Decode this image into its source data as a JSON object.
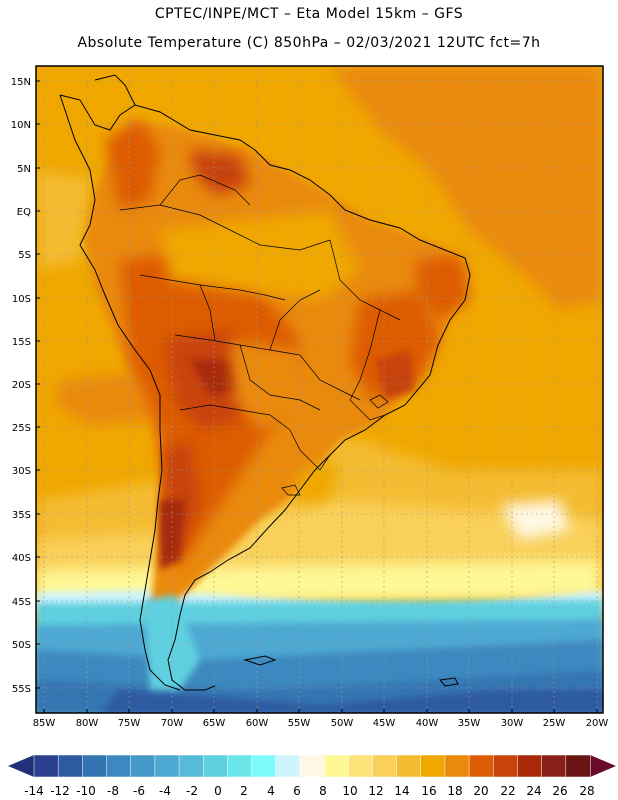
{
  "header": {
    "line1": "CPTEC/INPE/MCT –  Eta Model 15km – GFS",
    "line2": "Absolute Temperature (C) 850hPa – 02/03/2021 12UTC fct=7h"
  },
  "map": {
    "lat_labels": [
      "15N",
      "10N",
      "5N",
      "EQ",
      "5S",
      "10S",
      "15S",
      "20S",
      "25S",
      "30S",
      "35S",
      "40S",
      "45S",
      "50S",
      "55S"
    ],
    "lon_labels": [
      "85W",
      "80W",
      "75W",
      "70W",
      "65W",
      "60W",
      "55W",
      "50W",
      "45W",
      "40W",
      "35W",
      "30W",
      "25W",
      "20W"
    ],
    "lat_range": [
      -58,
      16.5
    ],
    "lon_range": [
      -86.5,
      -20
    ]
  },
  "colorbar": {
    "ticks": [
      "-14",
      "-12",
      "-10",
      "-8",
      "-6",
      "-4",
      "-2",
      "0",
      "2",
      "4",
      "6",
      "8",
      "10",
      "12",
      "14",
      "16",
      "18",
      "20",
      "22",
      "24",
      "26",
      "28"
    ],
    "colors": [
      "#2a3f8f",
      "#2d5aa0",
      "#3474b2",
      "#3c88c0",
      "#4599c8",
      "#4da9d2",
      "#55bbd8",
      "#5ed0e0",
      "#6be6ea",
      "#7efcfc",
      "#d0f4fc",
      "#fff8e4",
      "#fef896",
      "#fce47a",
      "#f9d05a",
      "#f4bc30",
      "#f0a700",
      "#ea8a0a",
      "#dd5c06",
      "#c8420a",
      "#a82a08",
      "#882018",
      "#6a1414"
    ],
    "under_color": "#22307a",
    "over_color": "#6a0a2a"
  }
}
